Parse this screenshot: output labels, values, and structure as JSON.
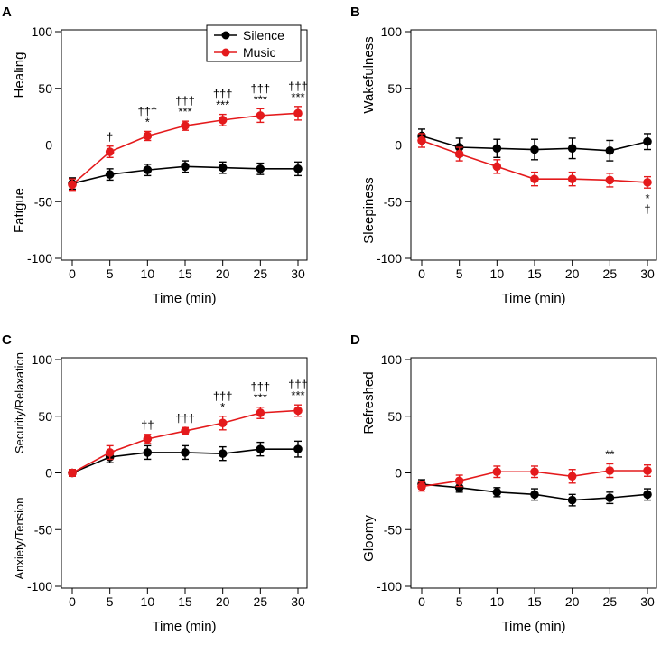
{
  "legend": {
    "items": [
      {
        "name": "Silence",
        "color": "#000000"
      },
      {
        "name": "Music",
        "color": "#e41a1c"
      }
    ]
  },
  "chart_data": [
    {
      "panel": "A",
      "type": "line",
      "x": [
        0,
        5,
        10,
        15,
        20,
        25,
        30
      ],
      "xlabel": "Time (min)",
      "xticks": [
        "0",
        "5",
        "10",
        "15",
        "20",
        "25",
        "30"
      ],
      "ylim": [
        -100,
        100
      ],
      "yticks": [
        "100",
        "50",
        "0",
        "-50",
        "-100"
      ],
      "ylabel_top": "Healing",
      "ylabel_bottom": "Fatigue",
      "series": [
        {
          "name": "Silence",
          "color": "#000000",
          "values": [
            -34,
            -26,
            -22,
            -19,
            -20,
            -21,
            -21
          ],
          "err": [
            5,
            5,
            5,
            5,
            5,
            5,
            6
          ]
        },
        {
          "name": "Music",
          "color": "#e41a1c",
          "values": [
            -35,
            -6,
            8,
            17,
            22,
            26,
            28
          ],
          "err": [
            5,
            5,
            4,
            4,
            5,
            6,
            6
          ]
        }
      ],
      "annotations": [
        {
          "x": 5,
          "lines": [
            "†"
          ]
        },
        {
          "x": 10,
          "lines": [
            "†††",
            "*"
          ]
        },
        {
          "x": 15,
          "lines": [
            "†††",
            "***"
          ]
        },
        {
          "x": 20,
          "lines": [
            "†††",
            "***"
          ]
        },
        {
          "x": 25,
          "lines": [
            "†††",
            "***"
          ]
        },
        {
          "x": 30,
          "lines": [
            "†††",
            "***"
          ]
        }
      ]
    },
    {
      "panel": "B",
      "type": "line",
      "x": [
        0,
        5,
        10,
        15,
        20,
        25,
        30
      ],
      "xlabel": "Time (min)",
      "xticks": [
        "0",
        "5",
        "10",
        "15",
        "20",
        "25",
        "30"
      ],
      "ylim": [
        -100,
        100
      ],
      "yticks": [
        "100",
        "50",
        "0",
        "-50",
        "-100"
      ],
      "ylabel_top": "Wakefulness",
      "ylabel_bottom": "Sleepiness",
      "series": [
        {
          "name": "Silence",
          "color": "#000000",
          "values": [
            8,
            -2,
            -3,
            -4,
            -3,
            -5,
            3
          ],
          "err": [
            6,
            8,
            8,
            9,
            9,
            9,
            7
          ]
        },
        {
          "name": "Music",
          "color": "#e41a1c",
          "values": [
            4,
            -8,
            -19,
            -30,
            -30,
            -31,
            -33
          ],
          "err": [
            6,
            6,
            6,
            6,
            6,
            6,
            5
          ]
        }
      ],
      "annotations": [
        {
          "x": 30,
          "lines": [
            "*",
            "†"
          ],
          "below": true
        }
      ]
    },
    {
      "panel": "C",
      "type": "line",
      "x": [
        0,
        5,
        10,
        15,
        20,
        25,
        30
      ],
      "xlabel": "Time (min)",
      "xticks": [
        "0",
        "5",
        "10",
        "15",
        "20",
        "25",
        "30"
      ],
      "ylim": [
        -100,
        100
      ],
      "yticks": [
        "100",
        "50",
        "0",
        "-50",
        "-100"
      ],
      "ylabel_top": "Security/Relaxation",
      "ylabel_bottom": "Anxiety/Tension",
      "series": [
        {
          "name": "Silence",
          "color": "#000000",
          "values": [
            0,
            14,
            18,
            18,
            17,
            21,
            21
          ],
          "err": [
            3,
            5,
            6,
            6,
            6,
            6,
            7
          ]
        },
        {
          "name": "Music",
          "color": "#e41a1c",
          "values": [
            0,
            18,
            30,
            37,
            44,
            53,
            55
          ],
          "err": [
            3,
            6,
            4,
            3,
            6,
            5,
            5
          ]
        }
      ],
      "annotations": [
        {
          "x": 10,
          "lines": [
            "††"
          ]
        },
        {
          "x": 15,
          "lines": [
            "†††"
          ]
        },
        {
          "x": 20,
          "lines": [
            "†††",
            "*"
          ]
        },
        {
          "x": 25,
          "lines": [
            "†††",
            "***"
          ]
        },
        {
          "x": 30,
          "lines": [
            "†††",
            "***"
          ]
        }
      ]
    },
    {
      "panel": "D",
      "type": "line",
      "x": [
        0,
        5,
        10,
        15,
        20,
        25,
        30
      ],
      "xlabel": "Time (min)",
      "xticks": [
        "0",
        "5",
        "10",
        "15",
        "20",
        "25",
        "30"
      ],
      "ylim": [
        -100,
        100
      ],
      "yticks": [
        "100",
        "50",
        "0",
        "-50",
        "-100"
      ],
      "ylabel_top": "Refreshed",
      "ylabel_bottom": "Gloomy",
      "series": [
        {
          "name": "Silence",
          "color": "#000000",
          "values": [
            -10,
            -13,
            -17,
            -19,
            -24,
            -22,
            -19
          ],
          "err": [
            4,
            4,
            4,
            5,
            5,
            5,
            5
          ]
        },
        {
          "name": "Music",
          "color": "#e41a1c",
          "values": [
            -12,
            -7,
            1,
            1,
            -3,
            2,
            2
          ],
          "err": [
            4,
            5,
            5,
            5,
            6,
            6,
            5
          ]
        }
      ],
      "annotations": [
        {
          "x": 25,
          "lines": [
            "**"
          ]
        }
      ]
    }
  ]
}
